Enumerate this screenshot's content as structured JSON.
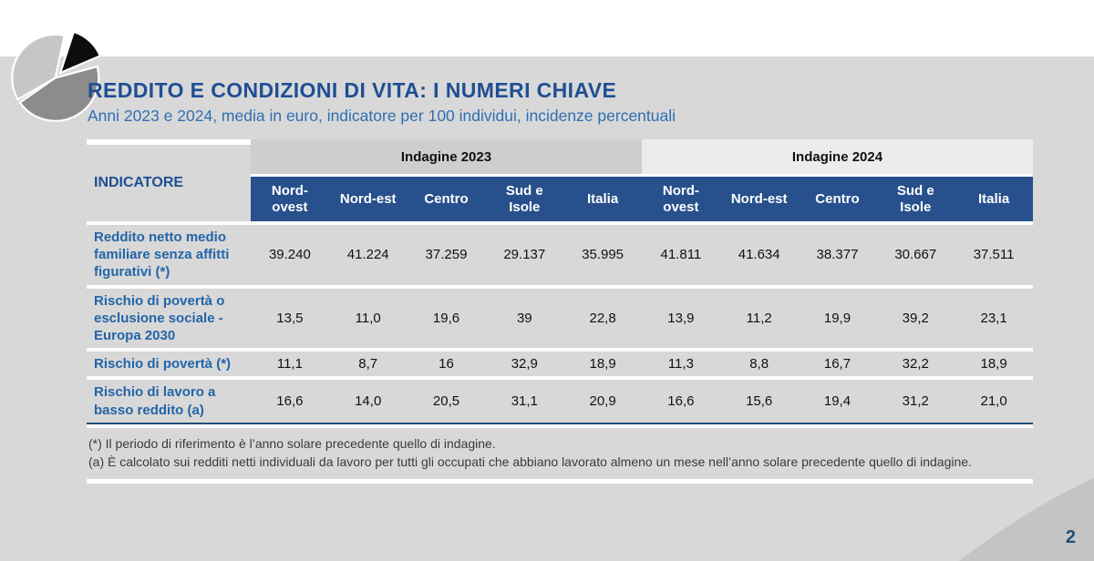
{
  "slide": {
    "title": "REDDITO E CONDIZIONI DI VITA: I NUMERI CHIAVE",
    "subtitle": "Anni 2023 e 2024, media in euro, indicatore per 100 individui, incidenze percentuali",
    "page_number": "2"
  },
  "colors": {
    "title_blue": "#1f4e94",
    "subtitle_blue": "#2e6fb3",
    "header_navy": "#27508c",
    "row_label_blue": "#2365a8",
    "band_2023": "#cfcdcd",
    "band_2024": "#ececeb",
    "slide_gray": "#d8d8d8",
    "swoosh_gray": "#c4c4c4"
  },
  "logo": {
    "icon": "pie-chart-logo"
  },
  "table": {
    "indicator_header": "INDICATORE",
    "groups": [
      {
        "label": "Indagine 2023"
      },
      {
        "label": "Indagine 2024"
      }
    ],
    "columns": [
      "Nord-ovest",
      "Nord-est",
      "Centro",
      "Sud e Isole",
      "Italia",
      "Nord-ovest",
      "Nord-est",
      "Centro",
      "Sud e Isole",
      "Italia"
    ],
    "rows": [
      {
        "label": "Reddito netto medio familiare senza affitti figurativi (*)",
        "values": [
          "39.240",
          "41.224",
          "37.259",
          "29.137",
          "35.995",
          "41.811",
          "41.634",
          "38.377",
          "30.667",
          "37.511"
        ]
      },
      {
        "label": "Rischio di povertà o esclusione sociale - Europa 2030",
        "values": [
          "13,5",
          "11,0",
          "19,6",
          "39",
          "22,8",
          "13,9",
          "11,2",
          "19,9",
          "39,2",
          "23,1"
        ]
      },
      {
        "label": "Rischio di povertà (*)",
        "values": [
          "11,1",
          "8,7",
          "16",
          "32,9",
          "18,9",
          "11,3",
          "8,8",
          "16,7",
          "32,2",
          "18,9"
        ]
      },
      {
        "label": "Rischio di lavoro a basso reddito (a)",
        "values": [
          "16,6",
          "14,0",
          "20,5",
          "31,1",
          "20,9",
          "16,6",
          "15,6",
          "19,4",
          "31,2",
          "21,0"
        ]
      }
    ]
  },
  "footnotes": [
    "(*) Il periodo di riferimento è l’anno solare precedente quello di indagine.",
    "(a) È calcolato sui redditi netti individuali da lavoro per tutti gli occupati che abbiano lavorato almeno un mese nell’anno solare precedente quello di indagine."
  ]
}
